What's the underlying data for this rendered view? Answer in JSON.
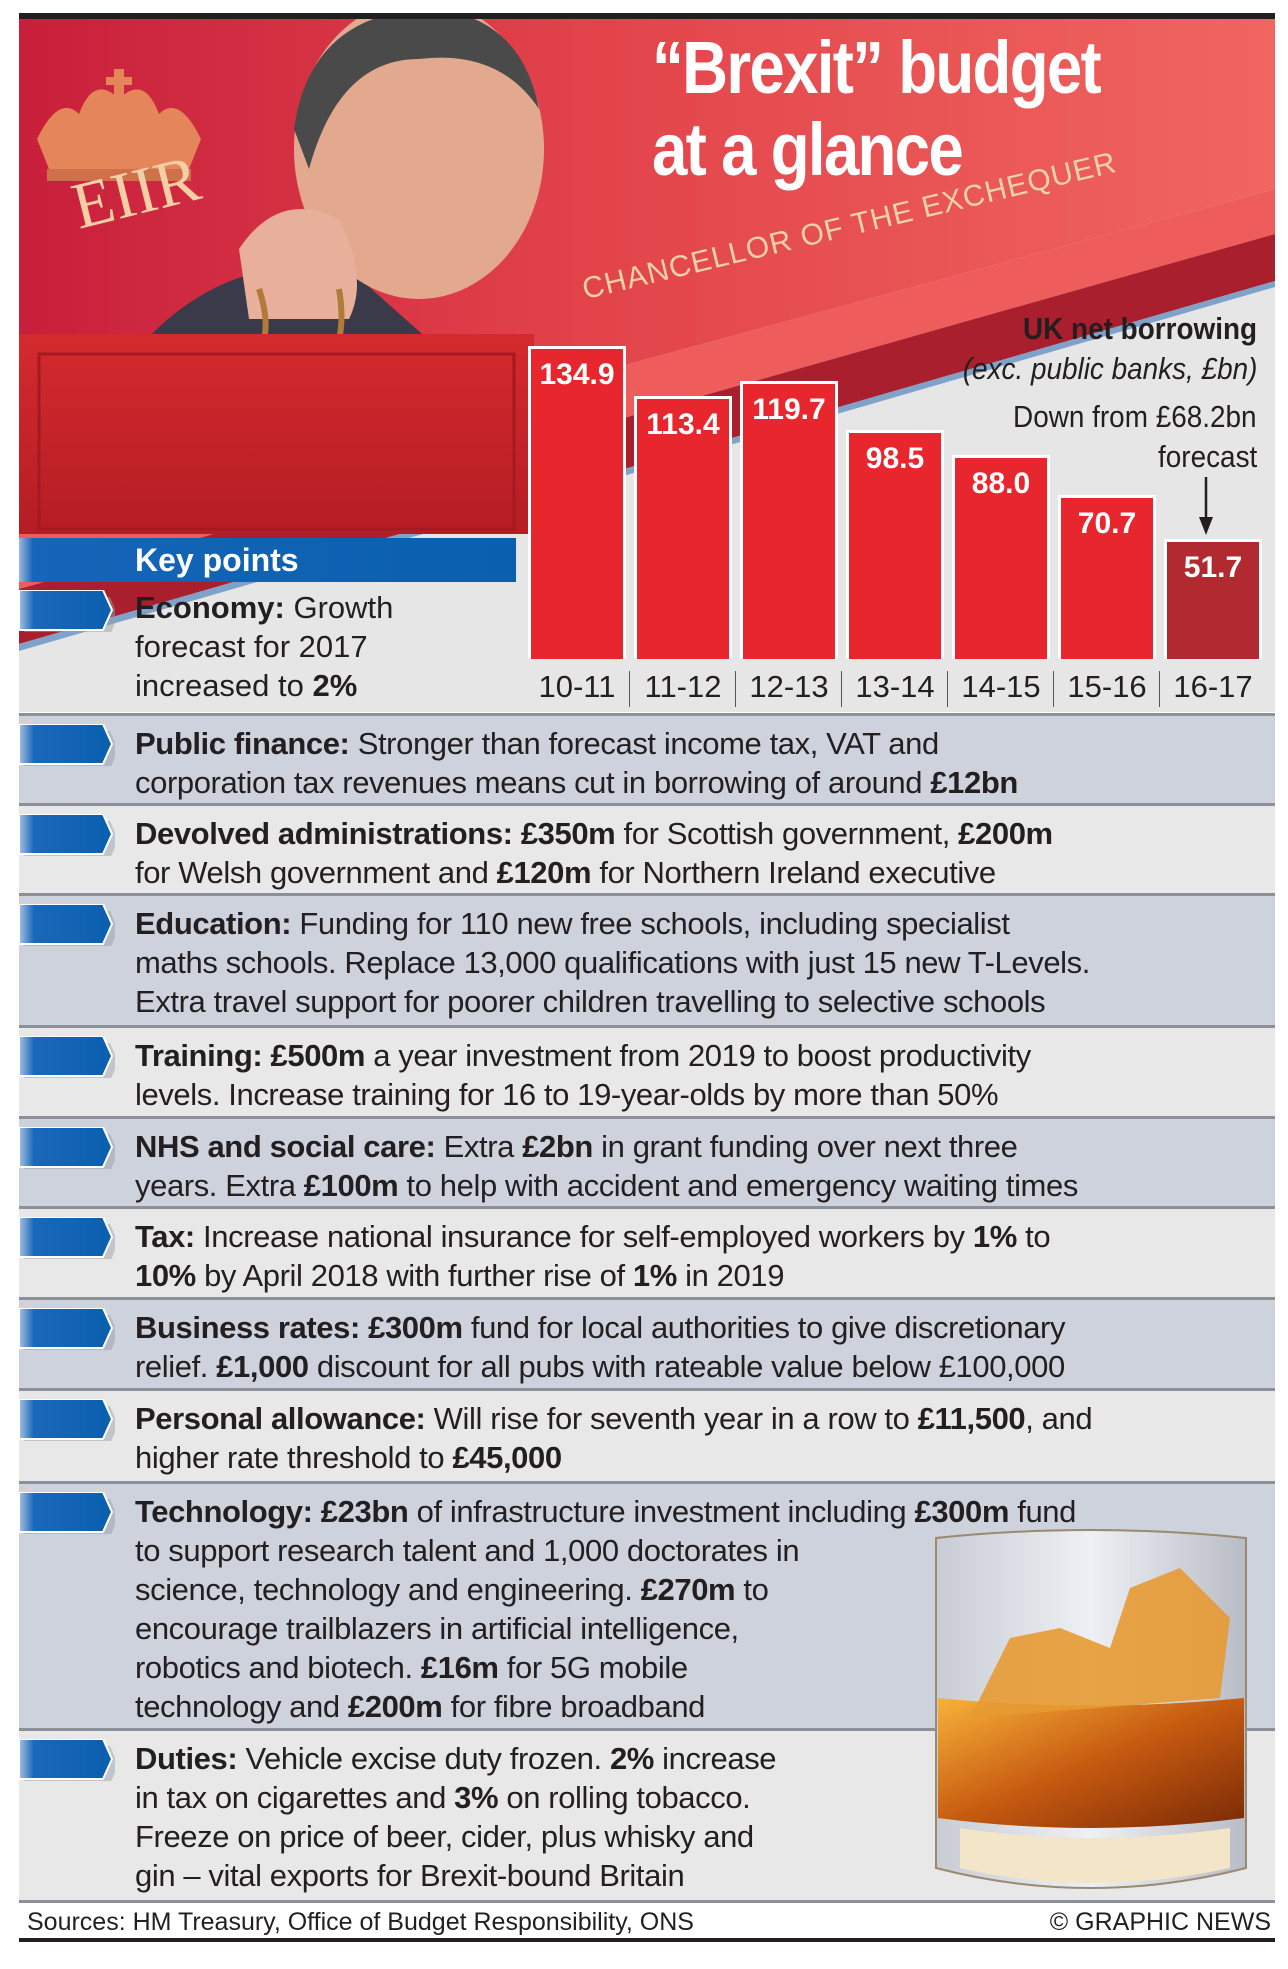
{
  "header": {
    "title_line1": "“Brexit” budget",
    "title_line2": "at a glance",
    "banner": "CHANCELLOR OF THE EXCHEQUER",
    "cipher": "EIIR"
  },
  "colors": {
    "bar": "#e8262d",
    "bar_highlight": "#b02a30",
    "accent_blue": "#0a5fae",
    "row_light": "#e8e8e8",
    "row_dark": "#cdd2dc"
  },
  "chart_data": {
    "type": "bar",
    "title": "UK net borrowing",
    "subtitle": "(exc. public banks, £bn)",
    "annotation_line1": "Down from £68.2bn",
    "annotation_line2": "forecast",
    "annotation_target": "16-17",
    "categories": [
      "10-11",
      "11-12",
      "12-13",
      "13-14",
      "14-15",
      "15-16",
      "16-17"
    ],
    "values": [
      134.9,
      113.4,
      119.7,
      98.5,
      88.0,
      70.7,
      51.7
    ],
    "value_labels": [
      "134.9",
      "113.4",
      "119.7",
      "98.5",
      "88.0",
      "70.7",
      "51.7"
    ],
    "highlight": "16-17",
    "ylim": [
      0,
      140
    ],
    "grid": false
  },
  "key_points": {
    "heading": "Key points",
    "economy": [
      [
        {
          "t": "Economy:",
          "b": true
        },
        {
          "t": " Growth",
          "b": false
        }
      ],
      [
        {
          "t": "forecast for 2017",
          "b": false
        }
      ],
      [
        {
          "t": "increased to ",
          "b": false
        },
        {
          "t": "2%",
          "b": true
        }
      ]
    ],
    "items": [
      {
        "lines": [
          [
            {
              "t": "Public finance:",
              "b": true
            },
            {
              "t": " Stronger than forecast income tax, VAT and",
              "b": false
            }
          ],
          [
            {
              "t": "corporation tax revenues means cut in borrowing of around ",
              "b": false
            },
            {
              "t": "£12bn",
              "b": true
            }
          ]
        ]
      },
      {
        "lines": [
          [
            {
              "t": "Devolved administrations:",
              "b": true
            },
            {
              "t": " ",
              "b": false
            },
            {
              "t": "£350m",
              "b": true
            },
            {
              "t": " for Scottish government, ",
              "b": false
            },
            {
              "t": "£200m",
              "b": true
            }
          ],
          [
            {
              "t": "for Welsh government and ",
              "b": false
            },
            {
              "t": "£120m",
              "b": true
            },
            {
              "t": " for Northern Ireland executive",
              "b": false
            }
          ]
        ]
      },
      {
        "lines": [
          [
            {
              "t": "Education:",
              "b": true
            },
            {
              "t": " Funding for 110 new free schools, including specialist",
              "b": false
            }
          ],
          [
            {
              "t": "maths schools. Replace 13,000 qualifications with just 15 new T-Levels.",
              "b": false
            }
          ],
          [
            {
              "t": "Extra travel support for poorer children travelling to selective schools",
              "b": false
            }
          ]
        ]
      },
      {
        "lines": [
          [
            {
              "t": "Training:",
              "b": true
            },
            {
              "t": " ",
              "b": false
            },
            {
              "t": "£500m",
              "b": true
            },
            {
              "t": " a year investment from 2019 to boost productivity",
              "b": false
            }
          ],
          [
            {
              "t": "levels. Increase training for 16 to 19-year-olds by more than 50%",
              "b": false
            }
          ]
        ]
      },
      {
        "lines": [
          [
            {
              "t": "NHS and social care:",
              "b": true
            },
            {
              "t": " Extra ",
              "b": false
            },
            {
              "t": "£2bn",
              "b": true
            },
            {
              "t": " in grant funding over next three",
              "b": false
            }
          ],
          [
            {
              "t": "years. Extra ",
              "b": false
            },
            {
              "t": "£100m",
              "b": true
            },
            {
              "t": " to help with accident and emergency waiting times",
              "b": false
            }
          ]
        ]
      },
      {
        "lines": [
          [
            {
              "t": "Tax:",
              "b": true
            },
            {
              "t": " Increase national insurance for self-employed workers by ",
              "b": false
            },
            {
              "t": "1%",
              "b": true
            },
            {
              "t": " to",
              "b": false
            }
          ],
          [
            {
              "t": "10%",
              "b": true
            },
            {
              "t": " by April 2018 with further rise of ",
              "b": false
            },
            {
              "t": "1%",
              "b": true
            },
            {
              "t": " in 2019",
              "b": false
            }
          ]
        ]
      },
      {
        "lines": [
          [
            {
              "t": "Business rates:",
              "b": true
            },
            {
              "t": " ",
              "b": false
            },
            {
              "t": "£300m",
              "b": true
            },
            {
              "t": " fund for local authorities to give discretionary",
              "b": false
            }
          ],
          [
            {
              "t": "relief. ",
              "b": false
            },
            {
              "t": "£1,000",
              "b": true
            },
            {
              "t": " discount for all pubs with rateable value below £100,000",
              "b": false
            }
          ]
        ]
      },
      {
        "lines": [
          [
            {
              "t": "Personal allowance:",
              "b": true
            },
            {
              "t": " Will rise for seventh year in a row to ",
              "b": false
            },
            {
              "t": "£11,500",
              "b": true
            },
            {
              "t": ", and",
              "b": false
            }
          ],
          [
            {
              "t": "higher rate threshold to ",
              "b": false
            },
            {
              "t": "£45,000",
              "b": true
            }
          ]
        ]
      },
      {
        "lines": [
          [
            {
              "t": "Technology:",
              "b": true
            },
            {
              "t": " ",
              "b": false
            },
            {
              "t": "£23bn",
              "b": true
            },
            {
              "t": " of infrastructure investment including ",
              "b": false
            },
            {
              "t": "£300m",
              "b": true
            },
            {
              "t": " fund",
              "b": false
            }
          ],
          [
            {
              "t": "to support research talent and 1,000 doctorates in",
              "b": false
            }
          ],
          [
            {
              "t": "science, technology and engineering. ",
              "b": false
            },
            {
              "t": "£270m",
              "b": true
            },
            {
              "t": " to",
              "b": false
            }
          ],
          [
            {
              "t": "encourage trailblazers in artificial intelligence,",
              "b": false
            }
          ],
          [
            {
              "t": "robotics and biotech. ",
              "b": false
            },
            {
              "t": "£16m",
              "b": true
            },
            {
              "t": " for 5G mobile",
              "b": false
            }
          ],
          [
            {
              "t": "technology and ",
              "b": false
            },
            {
              "t": "£200m",
              "b": true
            },
            {
              "t": " for fibre broadband",
              "b": false
            }
          ]
        ]
      },
      {
        "lines": [
          [
            {
              "t": "Duties:",
              "b": true
            },
            {
              "t": " Vehicle excise duty frozen. ",
              "b": false
            },
            {
              "t": "2%",
              "b": true
            },
            {
              "t": " increase",
              "b": false
            }
          ],
          [
            {
              "t": "in tax on cigarettes and ",
              "b": false
            },
            {
              "t": "3%",
              "b": true
            },
            {
              "t": " on rolling tobacco.",
              "b": false
            }
          ],
          [
            {
              "t": "Freeze on price of beer, cider, plus whisky and",
              "b": false
            }
          ],
          [
            {
              "t": "gin – vital exports for Brexit-bound Britain",
              "b": false
            }
          ]
        ]
      }
    ]
  },
  "footer": {
    "sources": "Sources: HM Treasury, Office of Budget Responsibility, ONS",
    "credit": "© GRAPHIC NEWS"
  }
}
